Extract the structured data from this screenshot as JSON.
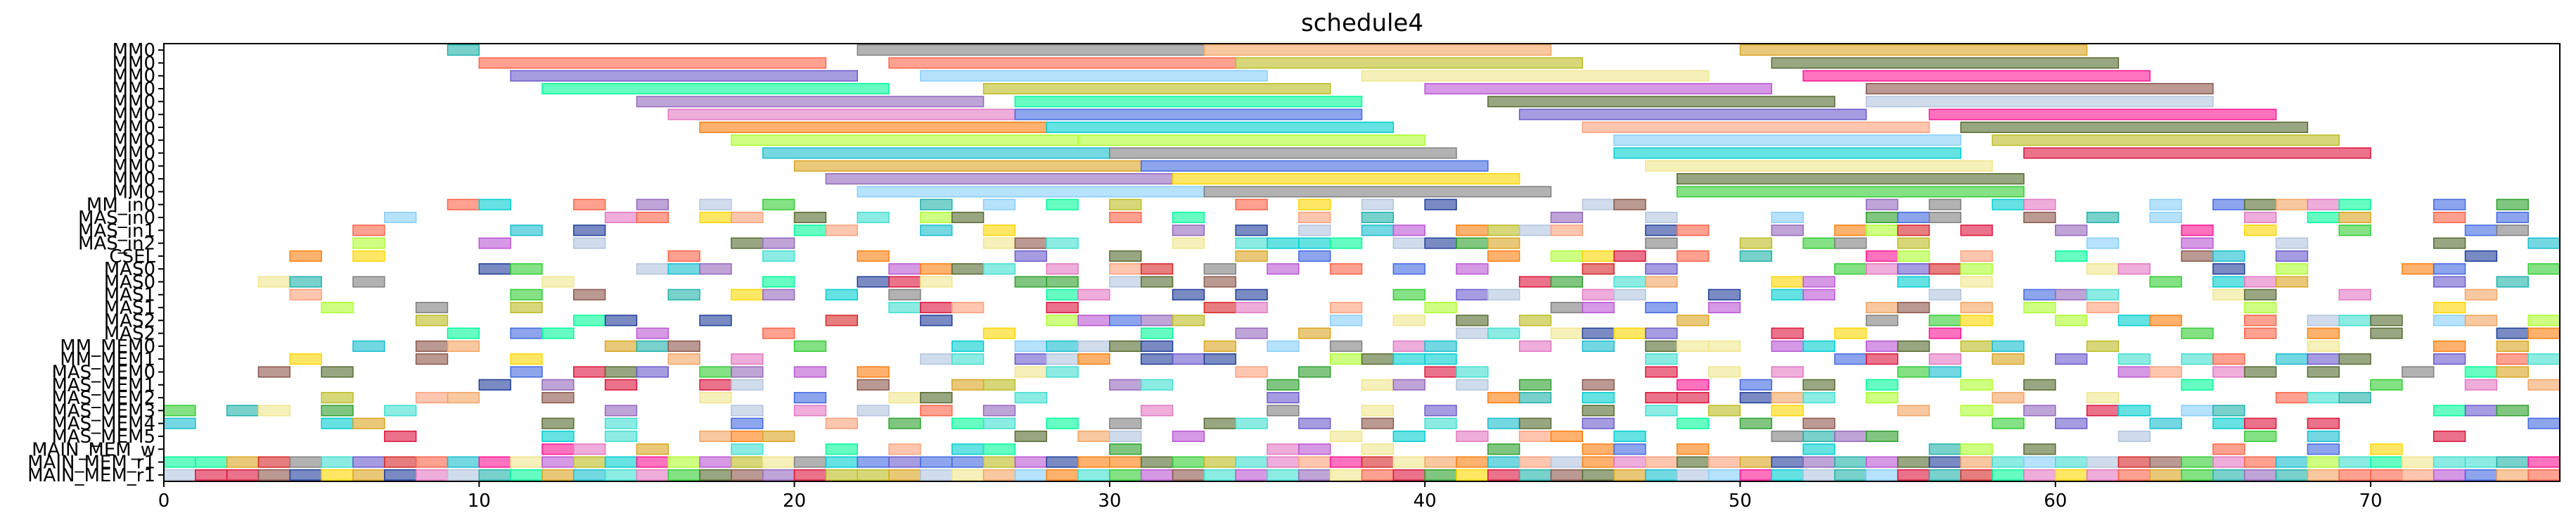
{
  "chart_data": {
    "type": "gantt",
    "title": "schedule4",
    "xlabel": "",
    "ylabel": "",
    "xlim": [
      0,
      76
    ],
    "xticks": [
      0,
      10,
      20,
      30,
      40,
      50,
      60,
      70
    ],
    "rows": [
      "MM0",
      "MM0",
      "MM0",
      "MM0",
      "MM0",
      "MM0",
      "MM0",
      "MM0",
      "MM0",
      "MM0",
      "MM0",
      "MM0",
      "MM_in0",
      "MAS_in0",
      "MAS_in1",
      "MAS_in2",
      "CSEL",
      "MAS0",
      "MAS0",
      "MAS1",
      "MAS1",
      "MAS2",
      "MAS2",
      "MM_MEM0",
      "MM_MEM1",
      "MAS_MEM0",
      "MAS_MEM1",
      "MAS_MEM2",
      "MAS_MEM3",
      "MAS_MEM4",
      "MAS_MEM5",
      "MAIN_MEM_w",
      "MAIN_MEM_r1",
      "MAIN_MEM_r1"
    ],
    "palette": [
      "#1f3d99",
      "#d62728",
      "#2ca02c",
      "#e377c2",
      "#17becf",
      "#bcbd22",
      "#9467bd",
      "#8c564b",
      "#ff7f0e",
      "#7f7f7f",
      "#ff1493",
      "#00ced1",
      "#adff2f",
      "#ffd700",
      "#4169e1",
      "#dc143c",
      "#32cd32",
      "#ba55d3",
      "#f4a460",
      "#20b2aa",
      "#ff6347",
      "#6a5acd",
      "#f0e68c",
      "#00fa9a",
      "#87cefa",
      "#b0c4de",
      "#556b2f",
      "#ffa07a",
      "#40e0d0",
      "#daa520"
    ],
    "grid": false,
    "legend": "none"
  }
}
